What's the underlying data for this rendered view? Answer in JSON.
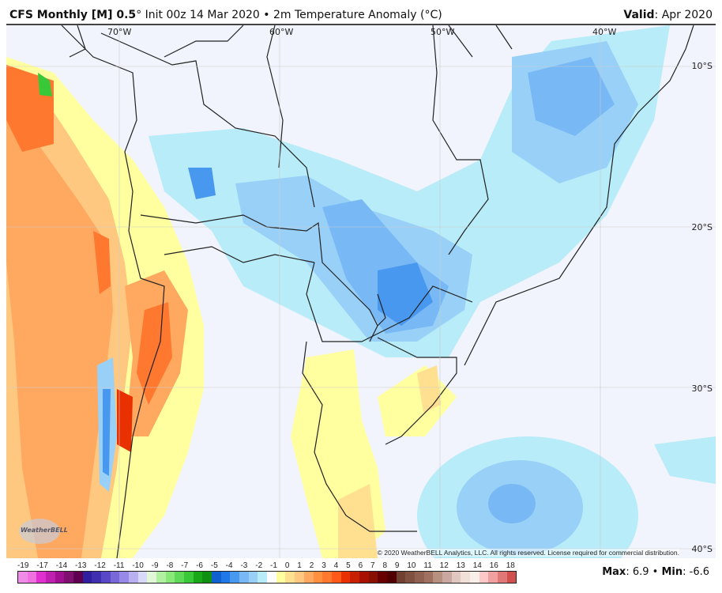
{
  "header": {
    "model": "CFS Monthly [M] 0.5",
    "init": "° Init 00z 14 Mar 2020 • 2m Temperature Anomaly (°C)",
    "valid_label": "Valid",
    "valid_value": ": Apr 2020"
  },
  "map": {
    "lon_labels": [
      "70°W",
      "60°W",
      "50°W",
      "40°W"
    ],
    "lat_labels": [
      "10°S",
      "20°S",
      "30°S",
      "40°S"
    ],
    "copyright": "© 2020 WeatherBELL Analytics, LLC. All rights reserved. License required for commercial distribution.",
    "logo_text": "WeatherBELL"
  },
  "colorbar": {
    "labels": [
      "-19",
      "-17",
      "-14",
      "-13",
      "-12",
      "-11",
      "-10",
      "-9",
      "-8",
      "-7",
      "-6",
      "-5",
      "-4",
      "-3",
      "-2",
      "-1",
      "0",
      "1",
      "2",
      "3",
      "4",
      "5",
      "6",
      "7",
      "8",
      "9",
      "10",
      "11",
      "12",
      "13",
      "14",
      "16",
      "18"
    ],
    "colors": [
      "#f08ce8",
      "#f070e0",
      "#e030d0",
      "#c020b0",
      "#a01090",
      "#801070",
      "#600050",
      "#3020a0",
      "#4030b0",
      "#5848c8",
      "#7868d8",
      "#9888e8",
      "#b8b0f0",
      "#d8d8f8",
      "#e0f8d8",
      "#b0f0a0",
      "#88e878",
      "#60d858",
      "#38c838",
      "#18a818",
      "#109010",
      "#1060d0",
      "#2078e8",
      "#4898f0",
      "#78b8f4",
      "#98d0f8",
      "#b8ecf8",
      "#ffffff",
      "#ffffa0",
      "#ffe090",
      "#ffc880",
      "#ffa860",
      "#ff9040",
      "#ff7830",
      "#ff5818",
      "#e83000",
      "#c82000",
      "#a81000",
      "#881000",
      "#680000",
      "#500000",
      "#704030",
      "#805040",
      "#906050",
      "#a07060",
      "#b89080",
      "#c8a8a0",
      "#e0c8c0",
      "#f0e0d8",
      "#f8f0e8",
      "#ffc8c8",
      "#f0a0a0",
      "#e07878",
      "#d05050"
    ],
    "max_label": "Max",
    "max_value": ": 6.9 • ",
    "min_label": "Min",
    "min_value": ": -6.6"
  }
}
